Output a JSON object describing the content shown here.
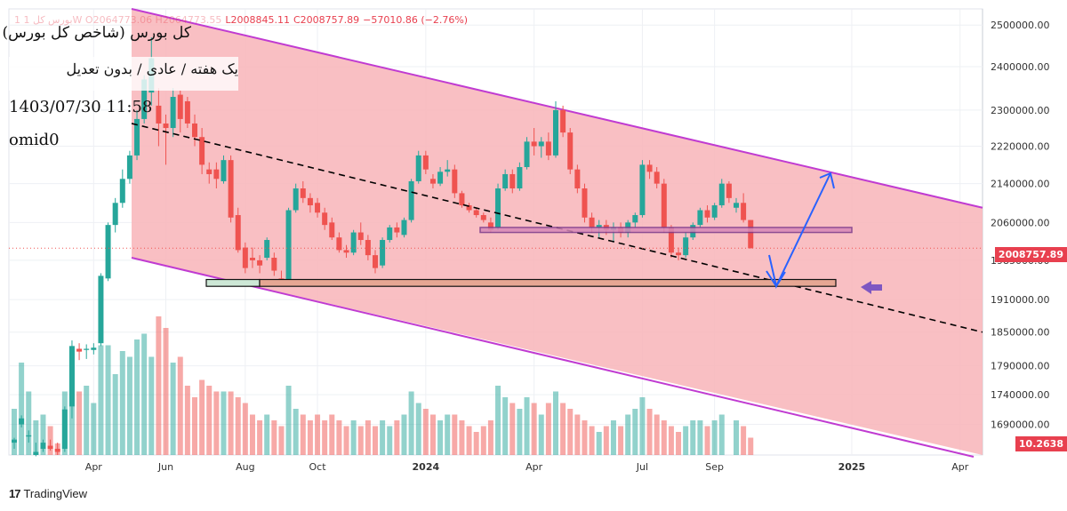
{
  "header": {
    "ohlc_prefix": "1 بورس کل 1W  O2064773.06  H2064773.55",
    "low": "L2008845.11",
    "close": "C2008757.89",
    "change": "−57010.86 (−2.76%)"
  },
  "labels": {
    "title": "کل بورس (شاخص کل بورس)",
    "subtitle": "یک هفته / عادی / بدون تعدیل",
    "datetime": "1403/07/30 11:58",
    "author": "omid0"
  },
  "price_tags": {
    "last_price": "2008757.89",
    "volume_value": "10.2638"
  },
  "footer": {
    "brand_logo": "17",
    "brand": "TradingView"
  },
  "colors": {
    "up": "#26a69a",
    "down": "#ef5350",
    "channel_fill": "#f8b4b9",
    "channel_line": "#c03bd1",
    "arrow": "#2962ff",
    "marker": "#7e57c2"
  },
  "chart_data": {
    "type": "candlestick",
    "y_ticks": [
      "2500000.00",
      "2400000.00",
      "2300000.00",
      "2220000.00",
      "2140000.00",
      "2060000.00",
      "1985000.00",
      "1910000.00",
      "1850000.00",
      "1790000.00",
      "1740000.00",
      "1690000.00"
    ],
    "x_ticks": [
      "Apr",
      "Jun",
      "Aug",
      "Oct",
      "2024",
      "Apr",
      "Jul",
      "Sep",
      "2025",
      "Apr"
    ],
    "ylim": [
      1640000,
      2540000
    ],
    "log_scale": true,
    "grid": true,
    "candles": [
      {
        "o": 1660000,
        "h": 1668000,
        "l": 1650000,
        "c": 1665000,
        "v": 0.4
      },
      {
        "o": 1690000,
        "h": 1705000,
        "l": 1685000,
        "c": 1700000,
        "v": 0.8
      },
      {
        "o": 1670000,
        "h": 1680000,
        "l": 1660000,
        "c": 1672000,
        "v": 0.55
      },
      {
        "o": 1640000,
        "h": 1660000,
        "l": 1638000,
        "c": 1645000,
        "v": 0.3
      },
      {
        "o": 1650000,
        "h": 1665000,
        "l": 1645000,
        "c": 1660000,
        "v": 0.35
      },
      {
        "o": 1655000,
        "h": 1665000,
        "l": 1647000,
        "c": 1650000,
        "v": 0.25
      },
      {
        "o": 1650000,
        "h": 1660000,
        "l": 1640000,
        "c": 1645000,
        "v": 0.1
      },
      {
        "o": 1650000,
        "h": 1720000,
        "l": 1645000,
        "c": 1715000,
        "v": 0.55
      },
      {
        "o": 1720000,
        "h": 1835000,
        "l": 1700000,
        "c": 1825000,
        "v": 0.9
      },
      {
        "o": 1820000,
        "h": 1830000,
        "l": 1800000,
        "c": 1815000,
        "v": 0.55
      },
      {
        "o": 1818000,
        "h": 1828000,
        "l": 1802000,
        "c": 1820000,
        "v": 0.6
      },
      {
        "o": 1818000,
        "h": 1830000,
        "l": 1810000,
        "c": 1822000,
        "v": 0.45
      },
      {
        "o": 1830000,
        "h": 1960000,
        "l": 1825000,
        "c": 1955000,
        "v": 0.95
      },
      {
        "o": 1950000,
        "h": 2060000,
        "l": 1945000,
        "c": 2055000,
        "v": 0.95
      },
      {
        "o": 2055000,
        "h": 2110000,
        "l": 2040000,
        "c": 2100000,
        "v": 0.7
      },
      {
        "o": 2100000,
        "h": 2170000,
        "l": 2090000,
        "c": 2150000,
        "v": 0.9
      },
      {
        "o": 2150000,
        "h": 2210000,
        "l": 2140000,
        "c": 2200000,
        "v": 0.85
      },
      {
        "o": 2200000,
        "h": 2300000,
        "l": 2190000,
        "c": 2280000,
        "v": 1.0
      },
      {
        "o": 2280000,
        "h": 2380000,
        "l": 2270000,
        "c": 2370000,
        "v": 1.05
      },
      {
        "o": 2340000,
        "h": 2470000,
        "l": 2310000,
        "c": 2420000,
        "v": 0.85
      },
      {
        "o": 2310000,
        "h": 2350000,
        "l": 2220000,
        "c": 2270000,
        "v": 1.2
      },
      {
        "o": 2270000,
        "h": 2290000,
        "l": 2180000,
        "c": 2260000,
        "v": 1.1
      },
      {
        "o": 2260000,
        "h": 2350000,
        "l": 2240000,
        "c": 2330000,
        "v": 0.8
      },
      {
        "o": 2335000,
        "h": 2345000,
        "l": 2250000,
        "c": 2280000,
        "v": 0.85
      },
      {
        "o": 2320000,
        "h": 2330000,
        "l": 2260000,
        "c": 2270000,
        "v": 0.6
      },
      {
        "o": 2270000,
        "h": 2290000,
        "l": 2220000,
        "c": 2240000,
        "v": 0.5
      },
      {
        "o": 2240000,
        "h": 2260000,
        "l": 2160000,
        "c": 2180000,
        "v": 0.65
      },
      {
        "o": 2170000,
        "h": 2185000,
        "l": 2140000,
        "c": 2160000,
        "v": 0.6
      },
      {
        "o": 2170000,
        "h": 2185000,
        "l": 2130000,
        "c": 2150000,
        "v": 0.55
      },
      {
        "o": 2145000,
        "h": 2200000,
        "l": 2140000,
        "c": 2190000,
        "v": 0.55
      },
      {
        "o": 2190000,
        "h": 2200000,
        "l": 2060000,
        "c": 2070000,
        "v": 0.55
      },
      {
        "o": 2075000,
        "h": 2090000,
        "l": 2000000,
        "c": 2005000,
        "v": 0.5
      },
      {
        "o": 2010000,
        "h": 2020000,
        "l": 1960000,
        "c": 1970000,
        "v": 0.45
      },
      {
        "o": 1990000,
        "h": 2010000,
        "l": 1970000,
        "c": 1985000,
        "v": 0.35
      },
      {
        "o": 1985000,
        "h": 1995000,
        "l": 1960000,
        "c": 1975000,
        "v": 0.3
      },
      {
        "o": 1990000,
        "h": 2030000,
        "l": 1985000,
        "c": 2025000,
        "v": 0.35
      },
      {
        "o": 1990000,
        "h": 2000000,
        "l": 1955000,
        "c": 1965000,
        "v": 0.3
      },
      {
        "o": 1950000,
        "h": 1965000,
        "l": 1935000,
        "c": 1940000,
        "v": 0.25
      },
      {
        "o": 1940000,
        "h": 2090000,
        "l": 1935000,
        "c": 2085000,
        "v": 0.6
      },
      {
        "o": 2085000,
        "h": 2140000,
        "l": 2080000,
        "c": 2130000,
        "v": 0.4
      },
      {
        "o": 2130000,
        "h": 2145000,
        "l": 2100000,
        "c": 2110000,
        "v": 0.35
      },
      {
        "o": 2110000,
        "h": 2120000,
        "l": 2080000,
        "c": 2095000,
        "v": 0.3
      },
      {
        "o": 2100000,
        "h": 2110000,
        "l": 2070000,
        "c": 2080000,
        "v": 0.35
      },
      {
        "o": 2080000,
        "h": 2090000,
        "l": 2045000,
        "c": 2055000,
        "v": 0.3
      },
      {
        "o": 2060000,
        "h": 2070000,
        "l": 2025000,
        "c": 2030000,
        "v": 0.35
      },
      {
        "o": 2030000,
        "h": 2040000,
        "l": 2000000,
        "c": 2005000,
        "v": 0.3
      },
      {
        "o": 2005000,
        "h": 2015000,
        "l": 1990000,
        "c": 2000000,
        "v": 0.25
      },
      {
        "o": 2000000,
        "h": 2045000,
        "l": 1995000,
        "c": 2040000,
        "v": 0.3
      },
      {
        "o": 2040000,
        "h": 2060000,
        "l": 2015000,
        "c": 2025000,
        "v": 0.25
      },
      {
        "o": 2025000,
        "h": 2035000,
        "l": 1985000,
        "c": 1995000,
        "v": 0.3
      },
      {
        "o": 1995000,
        "h": 2005000,
        "l": 1960000,
        "c": 1970000,
        "v": 0.25
      },
      {
        "o": 1975000,
        "h": 2030000,
        "l": 1970000,
        "c": 2025000,
        "v": 0.3
      },
      {
        "o": 2025000,
        "h": 2055000,
        "l": 2020000,
        "c": 2050000,
        "v": 0.25
      },
      {
        "o": 2050000,
        "h": 2060000,
        "l": 2030000,
        "c": 2040000,
        "v": 0.3
      },
      {
        "o": 2035000,
        "h": 2070000,
        "l": 2030000,
        "c": 2065000,
        "v": 0.35
      },
      {
        "o": 2065000,
        "h": 2150000,
        "l": 2060000,
        "c": 2145000,
        "v": 0.55
      },
      {
        "o": 2145000,
        "h": 2210000,
        "l": 2140000,
        "c": 2200000,
        "v": 0.45
      },
      {
        "o": 2200000,
        "h": 2210000,
        "l": 2160000,
        "c": 2170000,
        "v": 0.4
      },
      {
        "o": 2150000,
        "h": 2160000,
        "l": 2130000,
        "c": 2140000,
        "v": 0.35
      },
      {
        "o": 2140000,
        "h": 2175000,
        "l": 2135000,
        "c": 2165000,
        "v": 0.3
      },
      {
        "o": 2165000,
        "h": 2190000,
        "l": 2155000,
        "c": 2170000,
        "v": 0.35
      },
      {
        "o": 2170000,
        "h": 2180000,
        "l": 2110000,
        "c": 2120000,
        "v": 0.35
      },
      {
        "o": 2120000,
        "h": 2125000,
        "l": 2090000,
        "c": 2095000,
        "v": 0.3
      },
      {
        "o": 2095000,
        "h": 2100000,
        "l": 2080000,
        "c": 2085000,
        "v": 0.25
      },
      {
        "o": 2085000,
        "h": 2090000,
        "l": 2070000,
        "c": 2075000,
        "v": 0.2
      },
      {
        "o": 2075000,
        "h": 2080000,
        "l": 2060000,
        "c": 2065000,
        "v": 0.25
      },
      {
        "o": 2060000,
        "h": 2070000,
        "l": 2040000,
        "c": 2045000,
        "v": 0.3
      },
      {
        "o": 2050000,
        "h": 2140000,
        "l": 2045000,
        "c": 2130000,
        "v": 0.6
      },
      {
        "o": 2130000,
        "h": 2170000,
        "l": 2125000,
        "c": 2160000,
        "v": 0.5
      },
      {
        "o": 2160000,
        "h": 2170000,
        "l": 2120000,
        "c": 2130000,
        "v": 0.45
      },
      {
        "o": 2130000,
        "h": 2185000,
        "l": 2125000,
        "c": 2175000,
        "v": 0.4
      },
      {
        "o": 2175000,
        "h": 2240000,
        "l": 2170000,
        "c": 2230000,
        "v": 0.5
      },
      {
        "o": 2230000,
        "h": 2260000,
        "l": 2200000,
        "c": 2220000,
        "v": 0.45
      },
      {
        "o": 2220000,
        "h": 2240000,
        "l": 2195000,
        "c": 2230000,
        "v": 0.35
      },
      {
        "o": 2230000,
        "h": 2250000,
        "l": 2190000,
        "c": 2200000,
        "v": 0.45
      },
      {
        "o": 2200000,
        "h": 2320000,
        "l": 2195000,
        "c": 2300000,
        "v": 0.55
      },
      {
        "o": 2300000,
        "h": 2310000,
        "l": 2240000,
        "c": 2250000,
        "v": 0.45
      },
      {
        "o": 2250000,
        "h": 2260000,
        "l": 2160000,
        "c": 2170000,
        "v": 0.4
      },
      {
        "o": 2170000,
        "h": 2180000,
        "l": 2120000,
        "c": 2130000,
        "v": 0.35
      },
      {
        "o": 2130000,
        "h": 2140000,
        "l": 2060000,
        "c": 2070000,
        "v": 0.3
      },
      {
        "o": 2070000,
        "h": 2080000,
        "l": 2040000,
        "c": 2050000,
        "v": 0.25
      },
      {
        "o": 2050000,
        "h": 2065000,
        "l": 2030000,
        "c": 2055000,
        "v": 0.2
      },
      {
        "o": 2055000,
        "h": 2065000,
        "l": 2035000,
        "c": 2045000,
        "v": 0.25
      },
      {
        "o": 2045000,
        "h": 2060000,
        "l": 2020000,
        "c": 2050000,
        "v": 0.3
      },
      {
        "o": 2050000,
        "h": 2060000,
        "l": 2030000,
        "c": 2040000,
        "v": 0.25
      },
      {
        "o": 2040000,
        "h": 2065000,
        "l": 2030000,
        "c": 2060000,
        "v": 0.35
      },
      {
        "o": 2060000,
        "h": 2080000,
        "l": 2050000,
        "c": 2075000,
        "v": 0.4
      },
      {
        "o": 2075000,
        "h": 2190000,
        "l": 2070000,
        "c": 2180000,
        "v": 0.5
      },
      {
        "o": 2180000,
        "h": 2190000,
        "l": 2150000,
        "c": 2165000,
        "v": 0.4
      },
      {
        "o": 2165000,
        "h": 2175000,
        "l": 2130000,
        "c": 2140000,
        "v": 0.35
      },
      {
        "o": 2140000,
        "h": 2150000,
        "l": 2040000,
        "c": 2050000,
        "v": 0.3
      },
      {
        "o": 2050000,
        "h": 2055000,
        "l": 1990000,
        "c": 2000000,
        "v": 0.25
      },
      {
        "o": 2000000,
        "h": 2010000,
        "l": 1985000,
        "c": 1995000,
        "v": 0.2
      },
      {
        "o": 1995000,
        "h": 2040000,
        "l": 1990000,
        "c": 2030000,
        "v": 0.25
      },
      {
        "o": 2030000,
        "h": 2060000,
        "l": 2025000,
        "c": 2055000,
        "v": 0.3
      },
      {
        "o": 2055000,
        "h": 2090000,
        "l": 2050000,
        "c": 2085000,
        "v": 0.3
      },
      {
        "o": 2085000,
        "h": 2095000,
        "l": 2060000,
        "c": 2070000,
        "v": 0.25
      },
      {
        "o": 2070000,
        "h": 2100000,
        "l": 2065000,
        "c": 2095000,
        "v": 0.3
      },
      {
        "o": 2095000,
        "h": 2150000,
        "l": 2090000,
        "c": 2140000,
        "v": 0.35
      },
      {
        "o": 2140000,
        "h": 2145000,
        "l": 2100000,
        "c": 2110000,
        "v": 0.0
      },
      {
        "o": 2090000,
        "h": 2110000,
        "l": 2080000,
        "c": 2100000,
        "v": 0.3
      },
      {
        "o": 2100000,
        "h": 2120000,
        "l": 2060000,
        "c": 2065000,
        "v": 0.25
      },
      {
        "o": 2065000,
        "h": 2065000,
        "l": 2008000,
        "c": 2008757.89,
        "v": 0.15
      }
    ],
    "annotations": {
      "channel": {
        "upper_start": 2540000,
        "upper_end": 2090000,
        "lower_start": 1990000,
        "lower_end": 1640000
      },
      "trend_line": {
        "start": 2270000,
        "end": 1850000
      },
      "resistance_zone": [
        2040000,
        2050000
      ],
      "support_zone": [
        1935000,
        1948000
      ]
    }
  }
}
